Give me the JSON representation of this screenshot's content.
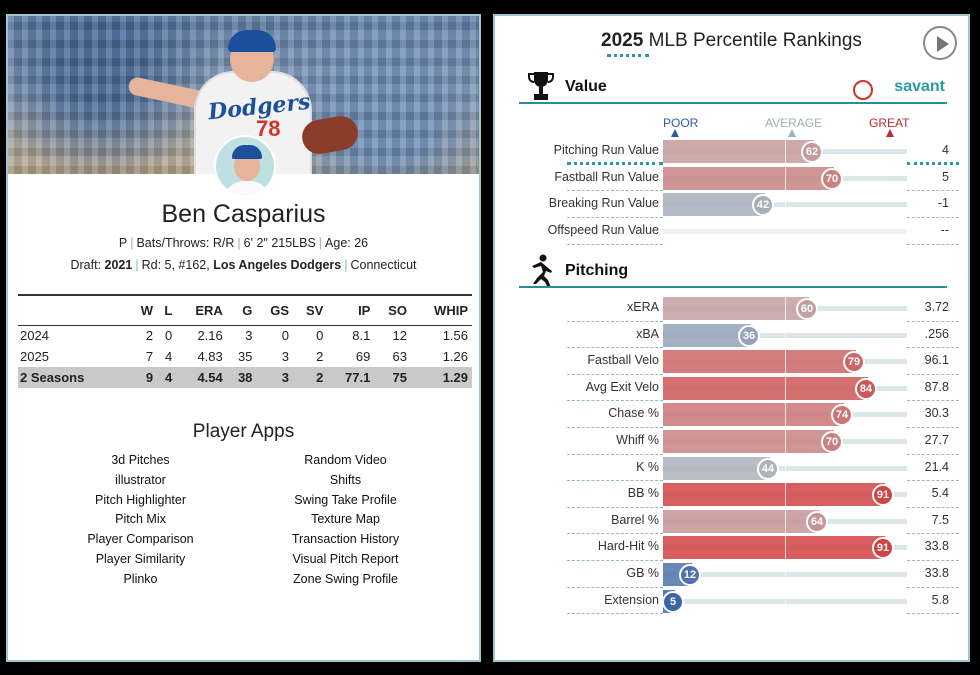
{
  "player": {
    "name": "Ben Casparius",
    "position": "P",
    "bats_throws": "Bats/Throws: R/R",
    "height_weight": "6' 2\" 215LBS",
    "age": "Age: 26",
    "draft_label": "Draft:",
    "draft_year": "2021",
    "draft_detail": "Rd: 5, #162,",
    "draft_team": "Los Angeles Dodgers",
    "school": "Connecticut",
    "jersey_text": "Dodgers",
    "jersey_number": "78"
  },
  "stats": {
    "headers": [
      "",
      "W",
      "L",
      "ERA",
      "G",
      "GS",
      "SV",
      "IP",
      "SO",
      "WHIP"
    ],
    "rows": [
      [
        "2024",
        "2",
        "0",
        "2.16",
        "3",
        "0",
        "0",
        "8.1",
        "12",
        "1.56"
      ],
      [
        "2025",
        "7",
        "4",
        "4.83",
        "35",
        "3",
        "2",
        "69",
        "63",
        "1.26"
      ],
      [
        "2 Seasons",
        "9",
        "4",
        "4.54",
        "38",
        "3",
        "2",
        "77.1",
        "75",
        "1.29"
      ]
    ]
  },
  "apps": {
    "title": "Player Apps",
    "left": [
      "3d Pitches",
      "illustrator",
      "Pitch Highlighter",
      "Pitch Mix",
      "Player Comparison",
      "Player Similarity",
      "Plinko"
    ],
    "right": [
      "Random Video",
      "Shifts",
      "Swing Take Profile",
      "Texture Map",
      "Transaction History",
      "Visual Pitch Report",
      "Zone Swing Profile"
    ]
  },
  "rankings": {
    "title_year": "2025",
    "title_rest": "MLB Percentile Rankings",
    "scale": {
      "poor": "POOR",
      "average": "AVERAGE",
      "great": "GREAT"
    },
    "value_section": {
      "title": "Value",
      "brand": "savant",
      "metrics": [
        {
          "label": "Pitching Run Value",
          "percentile": 62,
          "value": "4",
          "highlight": true
        },
        {
          "label": "Fastball Run Value",
          "percentile": 70,
          "value": "5"
        },
        {
          "label": "Breaking Run Value",
          "percentile": 42,
          "value": "-1"
        },
        {
          "label": "Offspeed Run Value",
          "percentile": null,
          "value": "--"
        }
      ]
    },
    "pitching_section": {
      "title": "Pitching",
      "metrics": [
        {
          "label": "xERA",
          "percentile": 60,
          "value": "3.72"
        },
        {
          "label": "xBA",
          "percentile": 36,
          "value": ".256"
        },
        {
          "label": "Fastball Velo",
          "percentile": 79,
          "value": "96.1"
        },
        {
          "label": "Avg Exit Velo",
          "percentile": 84,
          "value": "87.8"
        },
        {
          "label": "Chase %",
          "percentile": 74,
          "value": "30.3"
        },
        {
          "label": "Whiff %",
          "percentile": 70,
          "value": "27.7"
        },
        {
          "label": "K %",
          "percentile": 44,
          "value": "21.4"
        },
        {
          "label": "BB %",
          "percentile": 91,
          "value": "5.4"
        },
        {
          "label": "Barrel %",
          "percentile": 64,
          "value": "7.5"
        },
        {
          "label": "Hard-Hit %",
          "percentile": 91,
          "value": "33.8"
        },
        {
          "label": "GB %",
          "percentile": 12,
          "value": "33.8"
        },
        {
          "label": "Extension",
          "percentile": 5,
          "value": "5.8"
        }
      ]
    }
  },
  "colors": {
    "accent": "#2a9aa6",
    "poor": "#2d5aa8",
    "great": "#d0332b"
  }
}
